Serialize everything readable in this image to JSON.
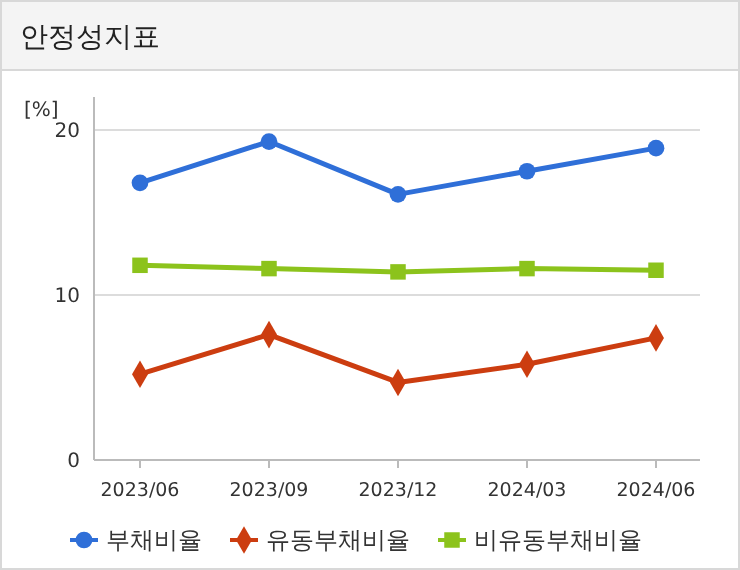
{
  "chart_data": {
    "type": "line",
    "title": "안정성지표",
    "ylabel": "[%]",
    "categories": [
      "2023/06",
      "2023/09",
      "2023/12",
      "2024/03",
      "2024/06"
    ],
    "series": [
      {
        "name": "부채비율",
        "color": "#2f6fd8",
        "marker": "circle",
        "values": [
          16.8,
          19.3,
          16.1,
          17.5,
          18.9
        ]
      },
      {
        "name": "유동부채비율",
        "color": "#cc3d10",
        "marker": "diamond",
        "values": [
          5.2,
          7.6,
          4.7,
          5.8,
          7.4
        ]
      },
      {
        "name": "비유동부채비율",
        "color": "#8cc31c",
        "marker": "square",
        "values": [
          11.8,
          11.6,
          11.4,
          11.6,
          11.5
        ]
      }
    ],
    "ylim": [
      0,
      22
    ],
    "yticks": [
      0,
      10,
      20
    ],
    "grid": "y",
    "legend": "bottom",
    "line_style": "solid"
  }
}
